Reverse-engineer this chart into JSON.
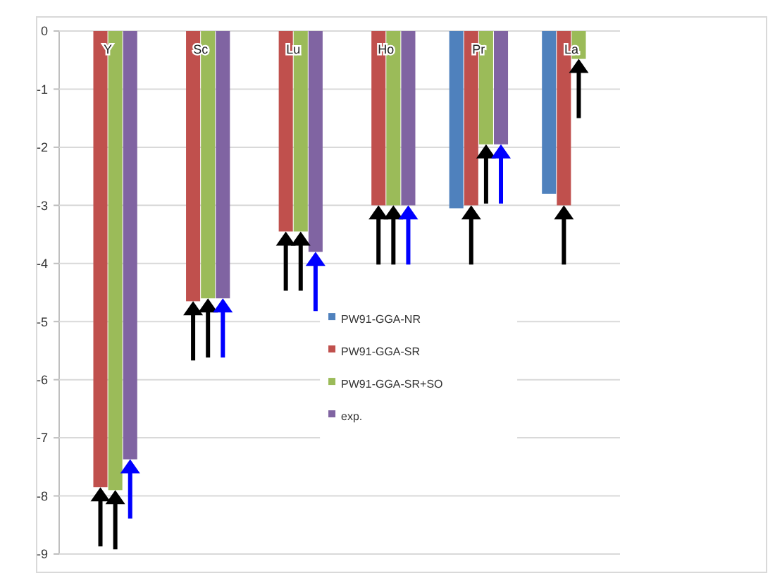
{
  "chart_data": {
    "type": "bar",
    "categories": [
      "Y",
      "Sc",
      "Lu",
      "Ho",
      "Pr",
      "La"
    ],
    "series": [
      {
        "name": "PW91-GGA-NR",
        "color": "#4f81bd",
        "values": [
          null,
          null,
          null,
          null,
          -3.05,
          -2.8
        ]
      },
      {
        "name": "PW91-GGA-SR",
        "color": "#c0504d",
        "values": [
          -7.85,
          -4.65,
          -3.45,
          -3.0,
          -3.0,
          -3.0
        ]
      },
      {
        "name": "PW91-GGA-SR+SO",
        "color": "#9bbb59",
        "values": [
          -7.9,
          -4.6,
          -3.45,
          -3.0,
          -1.95,
          -0.48
        ]
      },
      {
        "name": "exp.",
        "color": "#8064a2",
        "values": [
          -7.37,
          -4.6,
          -3.8,
          -3.0,
          -1.95,
          null
        ]
      }
    ],
    "ylim": [
      -9,
      0
    ],
    "yticks": [
      0,
      -1,
      -2,
      -3,
      -4,
      -5,
      -6,
      -7,
      -8,
      -9
    ],
    "grid": "y",
    "legend": "center"
  }
}
